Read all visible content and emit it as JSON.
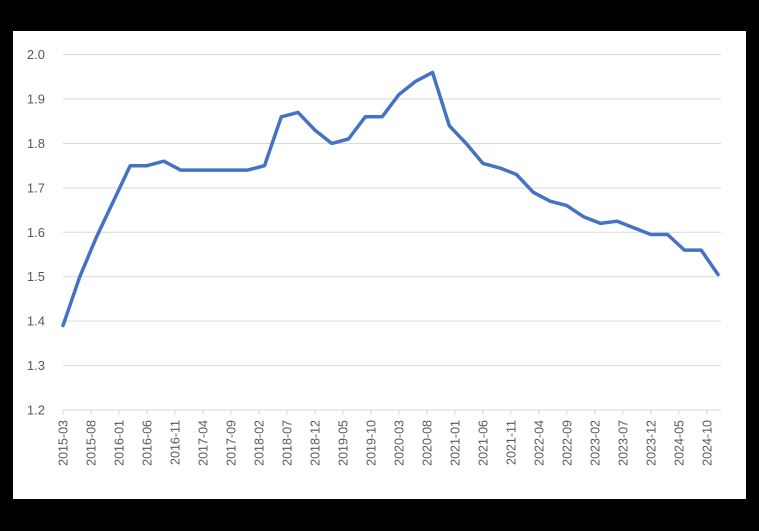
{
  "chart_data": {
    "type": "line",
    "title": "",
    "xlabel": "",
    "ylabel": "",
    "ylim": [
      1.2,
      2.0
    ],
    "yticks": [
      "1.2",
      "1.3",
      "1.4",
      "1.5",
      "1.6",
      "1.7",
      "1.8",
      "1.9",
      "2.0"
    ],
    "xtick_labels": [
      "2015-03",
      "2015-08",
      "2016-01",
      "2016-06",
      "2016-11",
      "2017-04",
      "2017-09",
      "2018-02",
      "2018-07",
      "2018-12",
      "2019-05",
      "2019-10",
      "2020-03",
      "2020-08",
      "2021-01",
      "2021-06",
      "2021-11",
      "2022-04",
      "2022-09",
      "2023-02",
      "2023-07",
      "2023-12",
      "2024-05",
      "2024-10"
    ],
    "grid": true,
    "legend": "none",
    "x": [
      "2015-03",
      "2015-06",
      "2015-09",
      "2015-12",
      "2016-03",
      "2016-06",
      "2016-09",
      "2016-12",
      "2017-03",
      "2017-06",
      "2017-09",
      "2017-12",
      "2018-03",
      "2018-06",
      "2018-09",
      "2018-12",
      "2019-03",
      "2019-06",
      "2019-09",
      "2019-12",
      "2020-03",
      "2020-06",
      "2020-09",
      "2020-12",
      "2021-03",
      "2021-06",
      "2021-09",
      "2021-12",
      "2022-03",
      "2022-06",
      "2022-09",
      "2022-12",
      "2023-03",
      "2023-06",
      "2023-09",
      "2023-12",
      "2024-03",
      "2024-06",
      "2024-09",
      "2024-12"
    ],
    "series": [
      {
        "name": "Series 1",
        "color": "#4472C4",
        "values": [
          1.39,
          1.5,
          1.59,
          1.67,
          1.75,
          1.75,
          1.76,
          1.74,
          1.74,
          1.74,
          1.74,
          1.74,
          1.75,
          1.86,
          1.87,
          1.83,
          1.8,
          1.81,
          1.86,
          1.86,
          1.91,
          1.94,
          1.96,
          1.84,
          1.8,
          1.755,
          1.745,
          1.73,
          1.69,
          1.67,
          1.66,
          1.635,
          1.62,
          1.625,
          1.61,
          1.595,
          1.595,
          1.56,
          1.56,
          1.505
        ]
      }
    ]
  },
  "style": {
    "background": "#000000",
    "panel": "#ffffff",
    "gridline": "#d9d9d9",
    "label": "#595959"
  }
}
